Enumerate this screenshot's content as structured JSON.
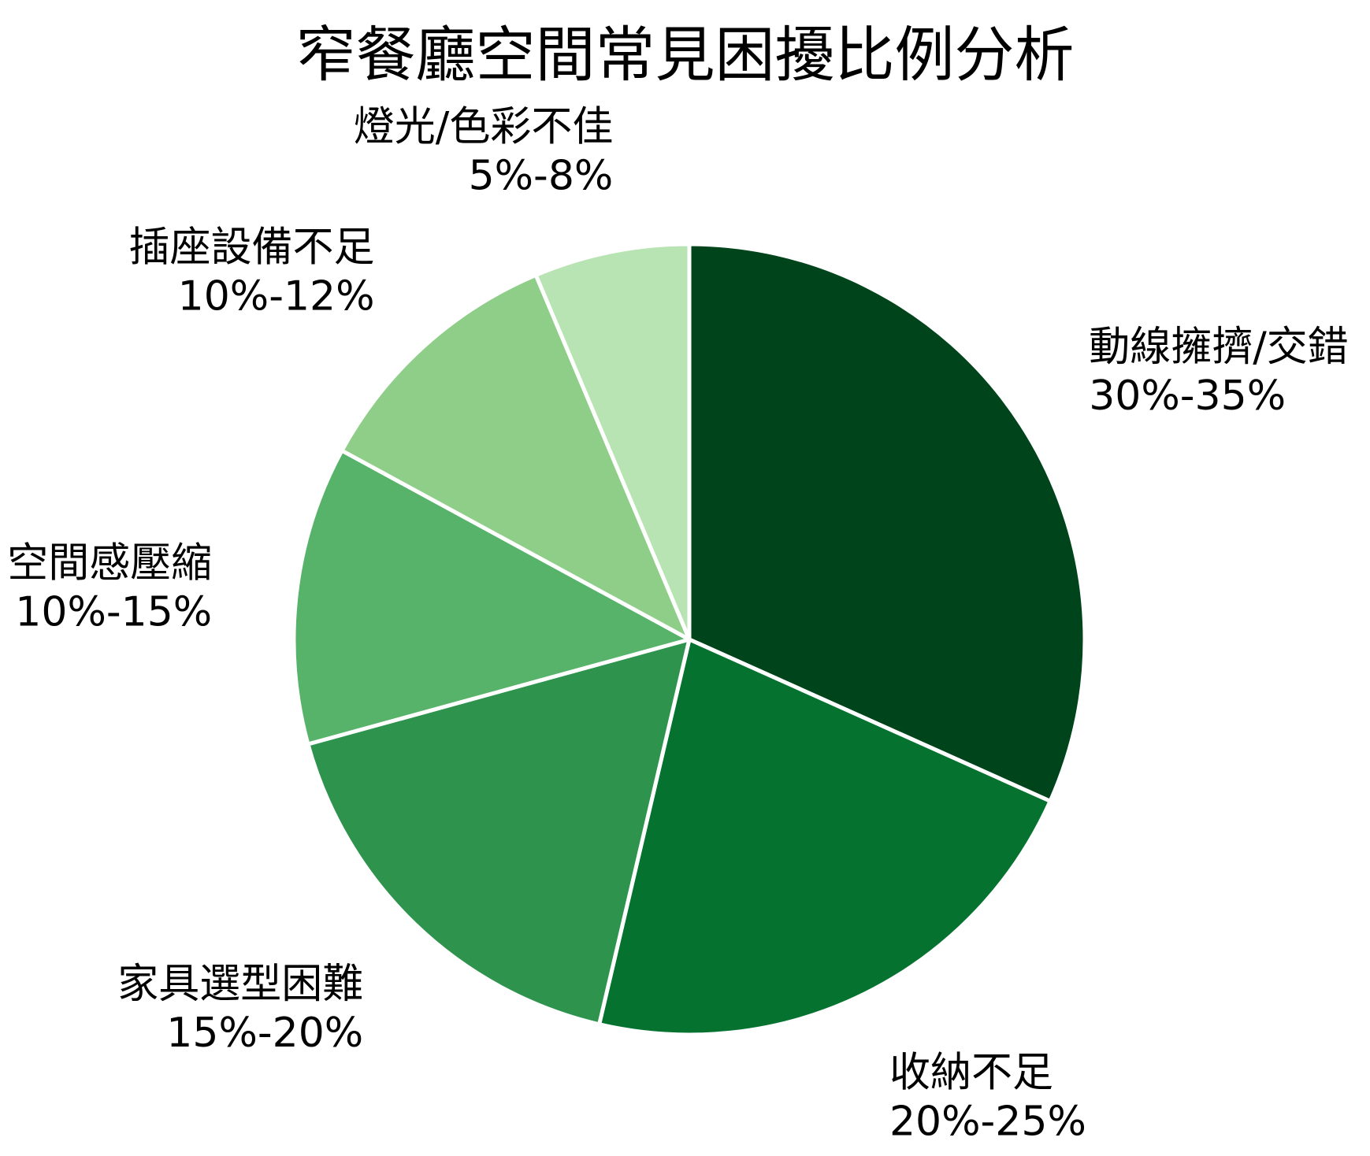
{
  "chart_data": {
    "type": "pie",
    "title": "窄餐廳空間常見困擾比例分析",
    "slices": [
      {
        "label": "動線擁擠/交錯",
        "value_text": "30%-35%",
        "value": 32.5,
        "color": "#00441b"
      },
      {
        "label": "收納不足",
        "value_text": "20%-25%",
        "value": 22.5,
        "color": "#067230"
      },
      {
        "label": "家具選型困難",
        "value_text": "15%-20%",
        "value": 17.5,
        "color": "#2d934d"
      },
      {
        "label": "空間感壓縮",
        "value_text": "10%-15%",
        "value": 12.5,
        "color": "#56b369"
      },
      {
        "label": "插座設備不足",
        "value_text": "10%-12%",
        "value": 11,
        "color": "#8fce88"
      },
      {
        "label": "燈光/色彩不佳",
        "value_text": "5%-8%",
        "value": 6.5,
        "color": "#b8e3b2"
      }
    ],
    "legend": "none"
  }
}
